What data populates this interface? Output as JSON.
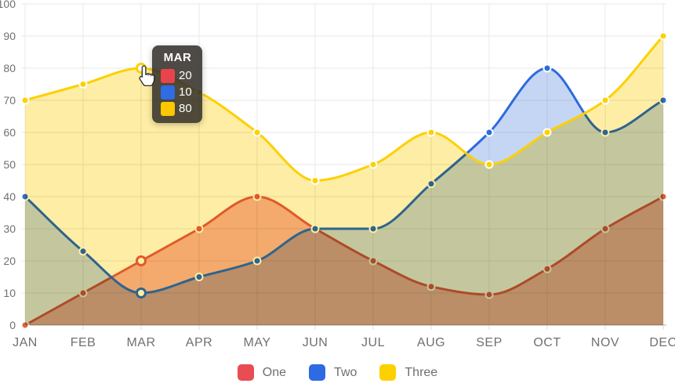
{
  "chart_data": {
    "type": "area",
    "title": "",
    "xlabel": "",
    "ylabel": "",
    "x": [
      "JAN",
      "FEB",
      "MAR",
      "APR",
      "MAY",
      "JUN",
      "JUL",
      "AUG",
      "SEP",
      "OCT",
      "NOV",
      "DEC"
    ],
    "y_ticks": [
      0,
      10,
      20,
      30,
      40,
      50,
      60,
      70,
      80,
      90,
      100
    ],
    "ylim": [
      0,
      100
    ],
    "grid": true,
    "legend_position": "bottom",
    "hover": {
      "index": 2,
      "label": "MAR"
    },
    "series": [
      {
        "name": "One",
        "color": "#e84c52",
        "line_color": "#e2603f",
        "fill_color": "#e7603f",
        "fill_opacity": 0.45,
        "values": [
          0,
          10,
          20,
          30,
          40,
          30,
          20,
          12,
          9.5,
          17.5,
          30,
          40
        ]
      },
      {
        "name": "Two",
        "color": "#2d6ce0",
        "line_color": "#2e6bdc",
        "fill_color": "#2e6bdc",
        "fill_opacity": 0.28,
        "values": [
          40,
          23,
          10,
          15,
          20,
          30,
          30,
          44,
          60,
          80,
          60,
          70
        ]
      },
      {
        "name": "Three",
        "color": "#fdd100",
        "line_color": "#fdd000",
        "fill_color": "#fdd835",
        "fill_opacity": 0.45,
        "values": [
          70,
          75,
          80,
          72.5,
          60,
          45,
          50,
          60,
          50,
          60,
          70,
          90
        ]
      }
    ],
    "axis_text_color": "#6f7073",
    "gridline_color": "#e8e8e8",
    "axis_line_color": "#c8c8c8"
  },
  "tooltip": {
    "title": "MAR",
    "rows": [
      {
        "series": "One",
        "value": "20",
        "color": "#e8444c"
      },
      {
        "series": "Two",
        "value": "10",
        "color": "#2f6ce3"
      },
      {
        "series": "Three",
        "value": "80",
        "color": "#fcc800"
      }
    ]
  },
  "legend": {
    "items": [
      {
        "label": "One",
        "color": "#e94c52"
      },
      {
        "label": "Two",
        "color": "#2c6be2"
      },
      {
        "label": "Three",
        "color": "#fdd100"
      }
    ]
  }
}
